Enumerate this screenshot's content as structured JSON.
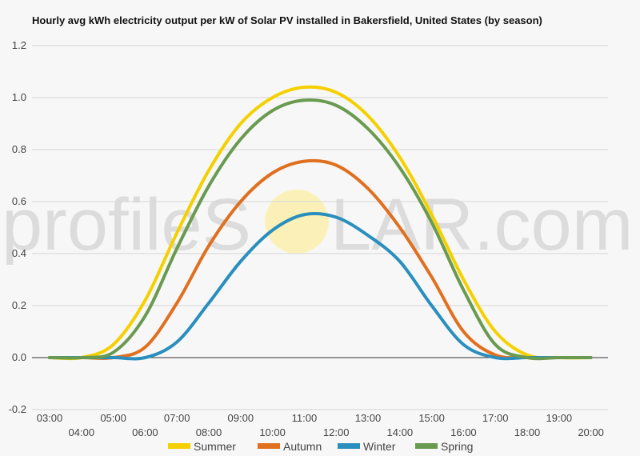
{
  "chart_data": {
    "type": "line",
    "title": "Hourly avg kWh electricity output per kW of Solar PV installed in Bakersfield, United States (by season)",
    "xlabel": "",
    "ylabel": "",
    "x": [
      "03:00",
      "04:00",
      "05:00",
      "06:00",
      "07:00",
      "08:00",
      "09:00",
      "10:00",
      "11:00",
      "12:00",
      "13:00",
      "14:00",
      "15:00",
      "16:00",
      "17:00",
      "18:00",
      "19:00",
      "20:00"
    ],
    "ylim": [
      -0.2,
      1.2
    ],
    "yticks": [
      "-0.2",
      "0.0",
      "0.2",
      "0.4",
      "0.6",
      "0.8",
      "1.0",
      "1.2"
    ],
    "grid": true,
    "legend_position": "bottom",
    "series": [
      {
        "name": "Summer",
        "color": "#f5d000",
        "values": [
          0.0,
          0.0,
          0.05,
          0.22,
          0.48,
          0.72,
          0.9,
          1.0,
          1.04,
          1.02,
          0.93,
          0.77,
          0.55,
          0.3,
          0.1,
          0.01,
          0.0,
          0.0
        ]
      },
      {
        "name": "Autumn",
        "color": "#e07020",
        "values": [
          0.0,
          0.0,
          0.0,
          0.04,
          0.21,
          0.43,
          0.6,
          0.71,
          0.755,
          0.74,
          0.65,
          0.5,
          0.31,
          0.1,
          0.01,
          0.0,
          0.0,
          0.0
        ]
      },
      {
        "name": "Winter",
        "color": "#2a8fbd",
        "values": [
          0.0,
          0.0,
          0.0,
          0.0,
          0.06,
          0.21,
          0.37,
          0.49,
          0.55,
          0.54,
          0.47,
          0.37,
          0.2,
          0.05,
          0.0,
          0.0,
          0.0,
          0.0
        ]
      },
      {
        "name": "Spring",
        "color": "#6a9a50",
        "values": [
          0.0,
          0.0,
          0.02,
          0.16,
          0.42,
          0.66,
          0.84,
          0.95,
          0.99,
          0.97,
          0.88,
          0.73,
          0.52,
          0.26,
          0.05,
          0.0,
          0.0,
          0.0
        ]
      }
    ]
  },
  "watermark": {
    "text_left": "profileS",
    "text_right": "LAR.com"
  }
}
